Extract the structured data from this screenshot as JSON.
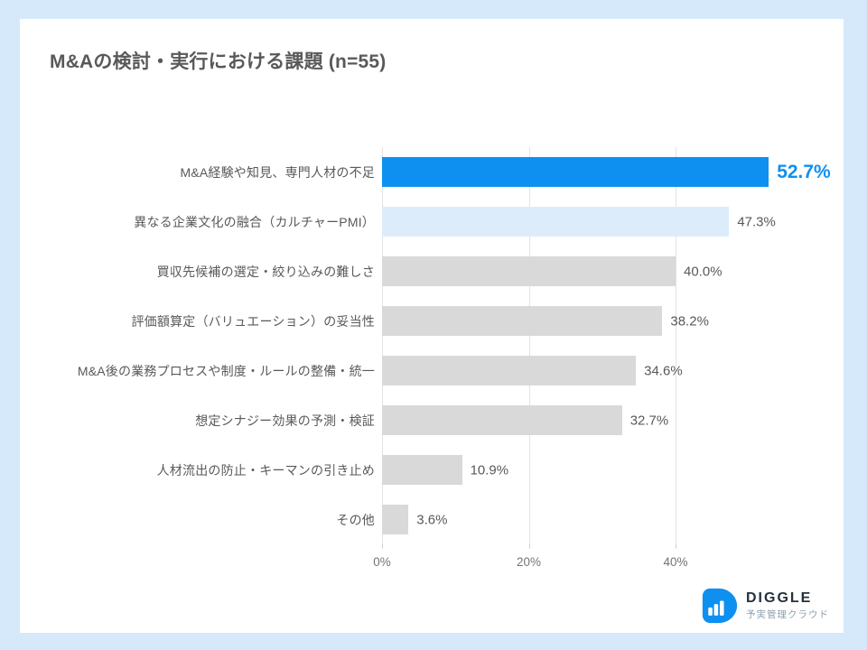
{
  "title": "M&Aの検討・実行における課題 (n=55)",
  "chart_data": {
    "type": "bar",
    "orientation": "horizontal",
    "title": "M&Aの検討・実行における課題 (n=55)",
    "sample_size": "n=55",
    "categories": [
      "M&A経験や知見、専門人材の不足",
      "異なる企業文化の融合（カルチャーPMI）",
      "買収先候補の選定・絞り込みの難しさ",
      "評価額算定（バリュエーション）の妥当性",
      "M&A後の業務プロセスや制度・ルールの整備・統一",
      "想定シナジー効果の予測・検証",
      "人材流出の防止・キーマンの引き止め",
      "その他"
    ],
    "values": [
      52.7,
      47.3,
      40.0,
      38.2,
      34.6,
      32.7,
      10.9,
      3.6
    ],
    "value_labels": [
      "52.7%",
      "47.3%",
      "40.0%",
      "38.2%",
      "34.6%",
      "32.7%",
      "10.9%",
      "3.6%"
    ],
    "bar_colors": [
      "#0e90f0",
      "#dcecfa",
      "#d9d9d9",
      "#d9d9d9",
      "#d9d9d9",
      "#d9d9d9",
      "#d9d9d9",
      "#d9d9d9"
    ],
    "emphasized_index": 0,
    "x_ticks": [
      "0%",
      "20%",
      "40%"
    ],
    "x_tick_values": [
      0,
      20,
      40
    ],
    "xlim": [
      0,
      62
    ],
    "grid": "vertical",
    "legend": "none"
  },
  "colors": {
    "page_background": "#d6e9fb",
    "card_background": "#ffffff",
    "accent_blue": "#0e90f0",
    "light_blue_bar": "#dcecfa",
    "gray_bar": "#d9d9d9",
    "title_text": "#595959",
    "label_text": "#595959",
    "value_text": "#595959",
    "axis_text": "#757575",
    "brand_text": "#25313c",
    "tagline_text": "#8da0ad"
  },
  "footer": {
    "brand": "DIGGLE",
    "tagline": "予実管理クラウド",
    "logo_icon": "diggle-d-bar-chart-icon"
  }
}
